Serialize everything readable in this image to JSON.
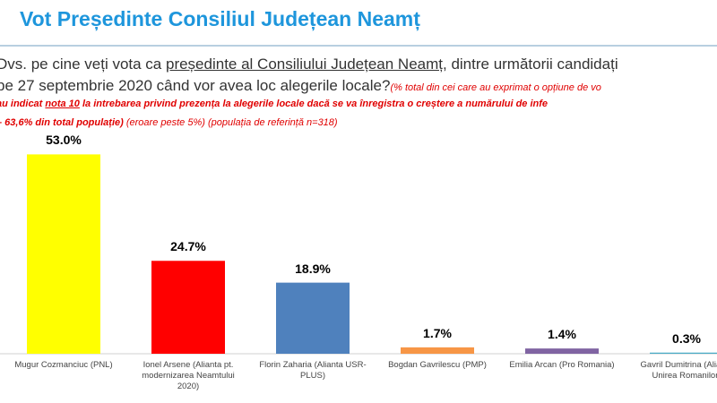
{
  "chart_data": {
    "type": "bar",
    "title": "Vot Președinte Consiliul Județean Neamț",
    "question": {
      "line1": [
        "Dvs. pe cine veți vota ca ",
        "președinte al Consiliului Județean Neamț",
        ", dintre următorii candidați"
      ],
      "line2": [
        "pe 27 septembrie 2020 când vor avea loc alegerile locale?",
        "(% total din cei care au exprimat o opțiune de vo"
      ],
      "line3": [
        "au indicat ",
        "nota 10",
        " la intrebarea privind prezența la alegerile locale dacă se va înregistra o creștere a numărului de infe"
      ],
      "line4": [
        "– 63,6% din total populație)",
        " (eroare peste 5%) (populația de referință n=318)"
      ]
    },
    "categories": [
      "Mugur Cozmanciuc (PNL)",
      "Ionel Arsene (Alianta pt. modernizarea Neamtului 2020)",
      "Florin Zaharia (Alianta USR-PLUS)",
      "Bogdan Gavrilescu (PMP)",
      "Emilia Arcan (Pro Romania)",
      "Gavril Dumitrina (Alianta Unirea Romanilor)"
    ],
    "values": [
      53.0,
      24.7,
      18.9,
      1.7,
      1.4,
      0.3
    ],
    "value_labels": [
      "53.0%",
      "24.7%",
      "18.9%",
      "1.7%",
      "1.4%",
      "0.3%"
    ],
    "colors": [
      "#ffff00",
      "#ff0000",
      "#4f81bd",
      "#f79646",
      "#8064a2",
      "#4bacc6"
    ]
  }
}
